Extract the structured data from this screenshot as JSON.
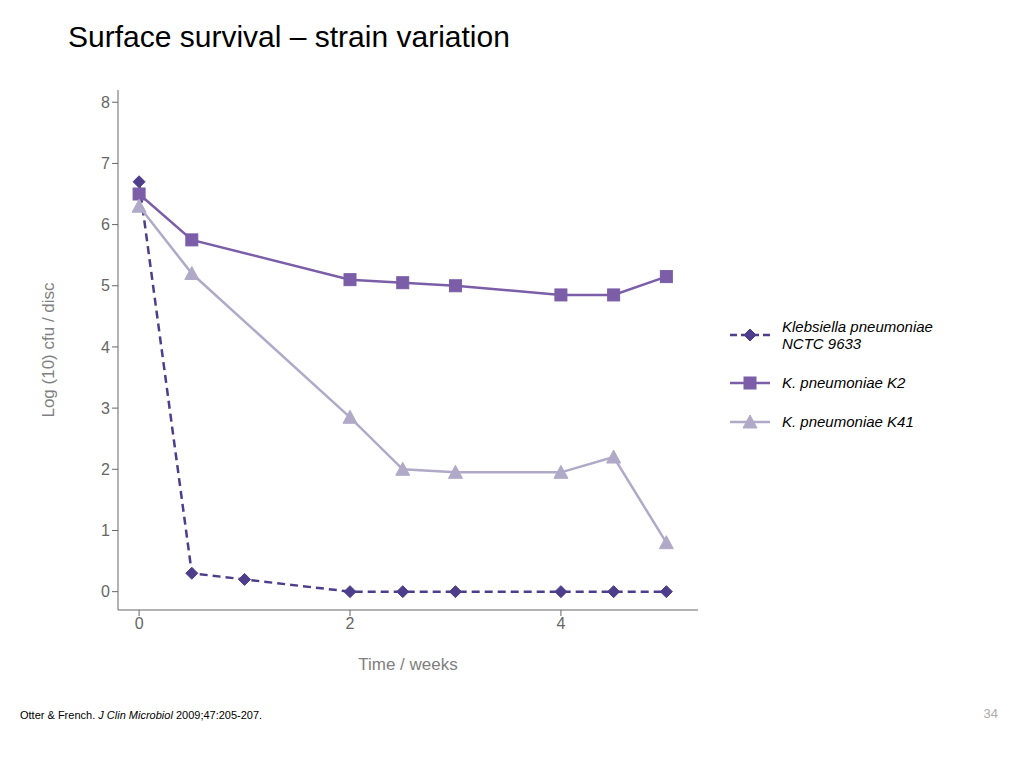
{
  "chart_data": {
    "type": "line",
    "title": "Surface survival – strain variation",
    "x_label": "Time / weeks",
    "y_label": "Log (10) cfu / disc",
    "xlim": [
      -0.2,
      5.3
    ],
    "ylim": [
      -0.3,
      8.2
    ],
    "xticks": [
      0,
      2,
      4
    ],
    "yticks": [
      0,
      1,
      2,
      3,
      4,
      5,
      6,
      7,
      8
    ],
    "grid": false,
    "legend": "right",
    "series": [
      {
        "name": "Klebsiella pneumoniae\nNCTC 9633",
        "x": [
          0,
          0.5,
          1,
          2,
          2.5,
          3,
          4,
          4.5,
          5
        ],
        "values": [
          6.7,
          0.3,
          0.2,
          0.0,
          0.0,
          0.0,
          0.0,
          0.0,
          0.0
        ],
        "color": "#4d3d8a",
        "line_style": "dashed",
        "marker": "diamond"
      },
      {
        "name": "K. pneumoniae K2",
        "x": [
          0,
          0.5,
          2,
          2.5,
          3,
          4,
          4.5,
          5
        ],
        "values": [
          6.5,
          5.75,
          5.1,
          5.05,
          5.0,
          4.85,
          4.85,
          5.15
        ],
        "color": "#7b5ea7",
        "line_style": "solid",
        "marker": "square"
      },
      {
        "name": "K. pneumoniae K41",
        "x": [
          0,
          0.5,
          2,
          2.5,
          3,
          4,
          4.5,
          5
        ],
        "values": [
          6.3,
          5.2,
          2.85,
          2.0,
          1.95,
          1.95,
          2.2,
          0.8
        ],
        "color": "#b0aac8",
        "line_style": "solid",
        "marker": "triangle"
      }
    ],
    "annotations": [
      "Otter & French.",
      "J Clin Microbiol",
      "2009;47:205-207.",
      "34"
    ]
  }
}
